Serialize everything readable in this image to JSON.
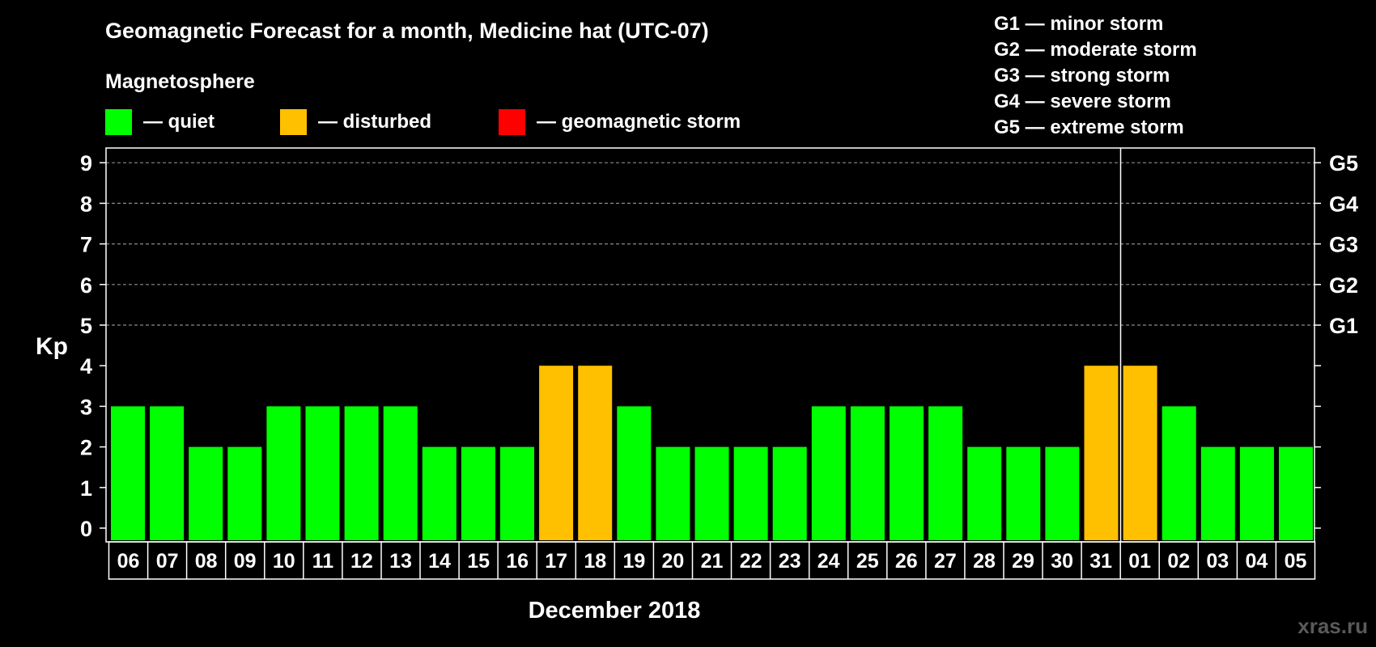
{
  "chart_data": {
    "type": "bar",
    "title": "Geomagnetic Forecast for a month, Medicine hat (UTC-07)",
    "legend_title": "Magnetosphere",
    "legend": [
      {
        "label": "— quiet",
        "color": "#00ff00"
      },
      {
        "label": "— disturbed",
        "color": "#ffc000"
      },
      {
        "label": "— geomagnetic storm",
        "color": "#ff0000"
      }
    ],
    "storm_scale": [
      "G1 — minor storm",
      "G2 — moderate storm",
      "G3 — strong storm",
      "G4 — severe storm",
      "G5 — extreme storm"
    ],
    "ylabel": "Kp",
    "xlabel": "December 2018",
    "ylim": [
      0,
      9
    ],
    "yticks": [
      "0",
      "1",
      "2",
      "3",
      "4",
      "5",
      "6",
      "7",
      "8",
      "9"
    ],
    "right_axis_labels": [
      {
        "kp": 5,
        "label": "G1"
      },
      {
        "kp": 6,
        "label": "G2"
      },
      {
        "kp": 7,
        "label": "G3"
      },
      {
        "kp": 8,
        "label": "G4"
      },
      {
        "kp": 9,
        "label": "G5"
      }
    ],
    "gridlines_dashed_from": 5,
    "month_divider_after": "31",
    "categories": [
      "06",
      "07",
      "08",
      "09",
      "10",
      "11",
      "12",
      "13",
      "14",
      "15",
      "16",
      "17",
      "18",
      "19",
      "20",
      "21",
      "22",
      "23",
      "24",
      "25",
      "26",
      "27",
      "28",
      "29",
      "30",
      "31",
      "01",
      "02",
      "03",
      "04",
      "05"
    ],
    "values": [
      3,
      3,
      2,
      2,
      3,
      3,
      3,
      3,
      2,
      2,
      2,
      4,
      4,
      3,
      2,
      2,
      2,
      2,
      3,
      3,
      3,
      3,
      2,
      2,
      2,
      4,
      4,
      3,
      2,
      2,
      2
    ],
    "colors": {
      "quiet": "#00ff00",
      "disturbed": "#ffc000",
      "storm": "#ff0000"
    },
    "thresholds": {
      "disturbed_min": 4,
      "storm_min": 5
    }
  },
  "watermark": "xras.ru"
}
